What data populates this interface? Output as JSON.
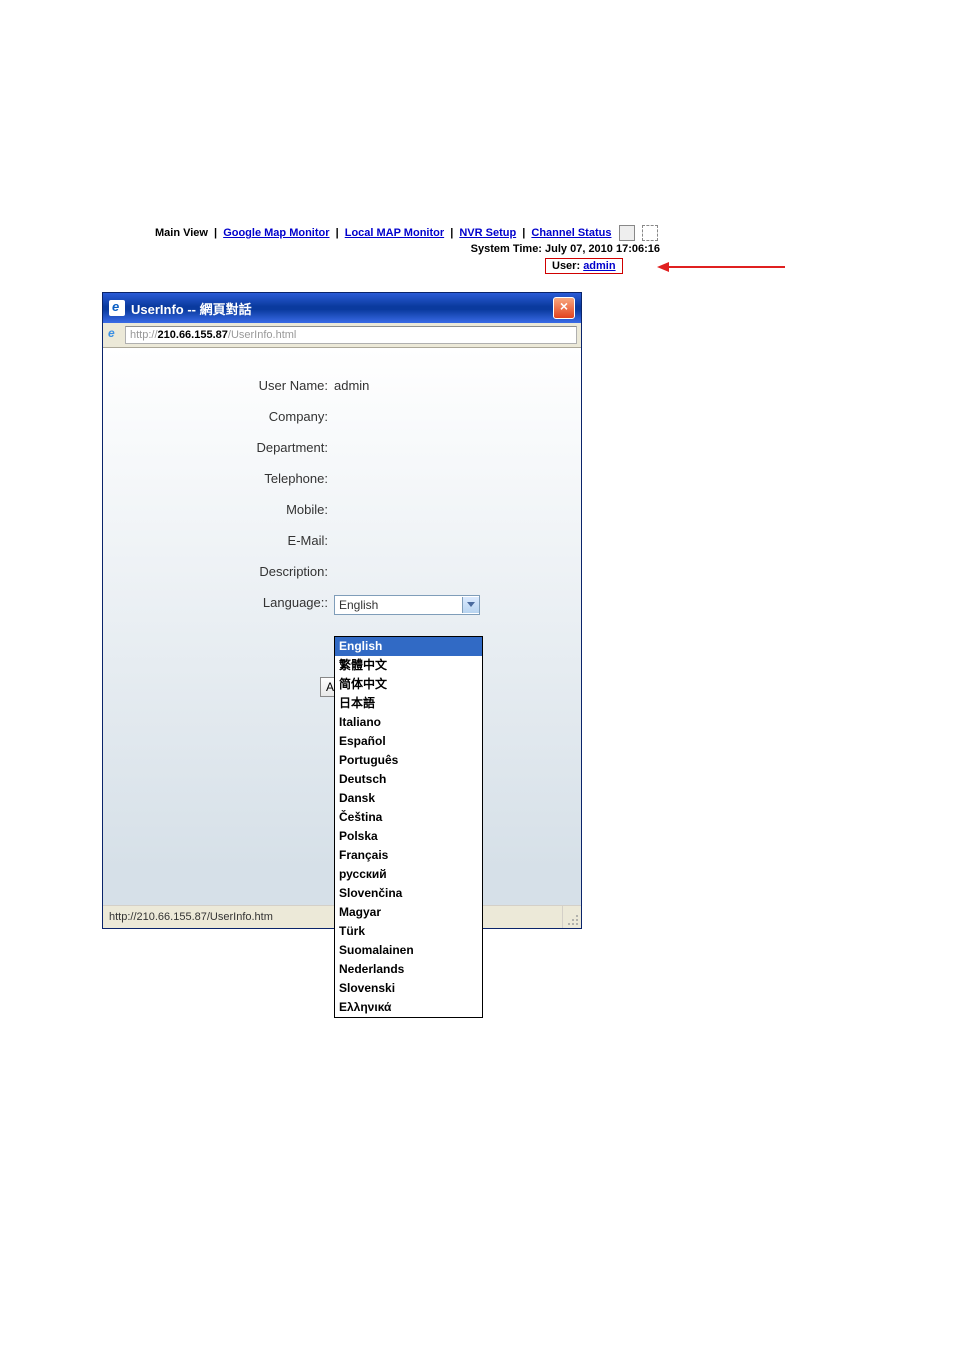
{
  "nav": {
    "mainview": "Main View",
    "google": "Google Map Monitor",
    "local": "Local MAP Monitor",
    "nvr": "NVR Setup",
    "channel": "Channel Status"
  },
  "systime": "System Time: July 07, 2010 17:06:16",
  "userline": {
    "label": "User: ",
    "value": "admin"
  },
  "dialog": {
    "title": "UserInfo -- 網頁對話",
    "url_prefix": "http://",
    "url_host": "210.66.155.87",
    "url_path": "/UserInfo.html",
    "close": "×"
  },
  "form": {
    "username_label": "User Name:",
    "username_value": "admin",
    "company_label": "Company:",
    "department_label": "Department:",
    "telephone_label": "Telephone:",
    "mobile_label": "Mobile:",
    "email_label": "E-Mail:",
    "description_label": "Description:",
    "language_label": "Language::",
    "language_value": "English",
    "apply_partial": "Appl"
  },
  "statusbar": {
    "text": "http://210.66.155.87/UserInfo.htm"
  },
  "dropdown": {
    "options": [
      "English",
      "繁體中文",
      "简体中文",
      "日本語",
      "Italiano",
      "Español",
      "Português",
      "Deutsch",
      "Dansk",
      "Čeština",
      "Polska",
      "Français",
      "русский",
      "Slovenčina",
      "Magyar",
      "Türk",
      "Suomalainen",
      "Nederlands",
      "Slovenski",
      "Ελληνικά"
    ],
    "selected_index": 0
  },
  "colors": {
    "arrow": "#e02020"
  }
}
